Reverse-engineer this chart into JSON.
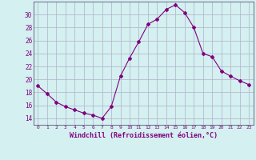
{
  "x": [
    0,
    1,
    2,
    3,
    4,
    5,
    6,
    7,
    8,
    9,
    10,
    11,
    12,
    13,
    14,
    15,
    16,
    17,
    18,
    19,
    20,
    21,
    22,
    23
  ],
  "y": [
    19.0,
    17.8,
    16.5,
    15.8,
    15.3,
    14.8,
    14.5,
    14.0,
    15.8,
    20.5,
    23.3,
    25.8,
    28.5,
    29.3,
    30.8,
    31.5,
    30.3,
    28.0,
    24.0,
    23.5,
    21.3,
    20.5,
    19.8,
    19.2
  ],
  "line_color": "#800080",
  "marker": "D",
  "marker_size": 2,
  "bg_color": "#d4f0f0",
  "grid_color": "#b0b0cc",
  "xlabel": "Windchill (Refroidissement éolien,°C)",
  "xlabel_color": "#800080",
  "tick_color": "#800080",
  "ylim": [
    13,
    32
  ],
  "yticks": [
    14,
    16,
    18,
    20,
    22,
    24,
    26,
    28,
    30
  ],
  "xlim": [
    -0.5,
    23.5
  ],
  "xticks": [
    0,
    1,
    2,
    3,
    4,
    5,
    6,
    7,
    8,
    9,
    10,
    11,
    12,
    13,
    14,
    15,
    16,
    17,
    18,
    19,
    20,
    21,
    22,
    23
  ]
}
